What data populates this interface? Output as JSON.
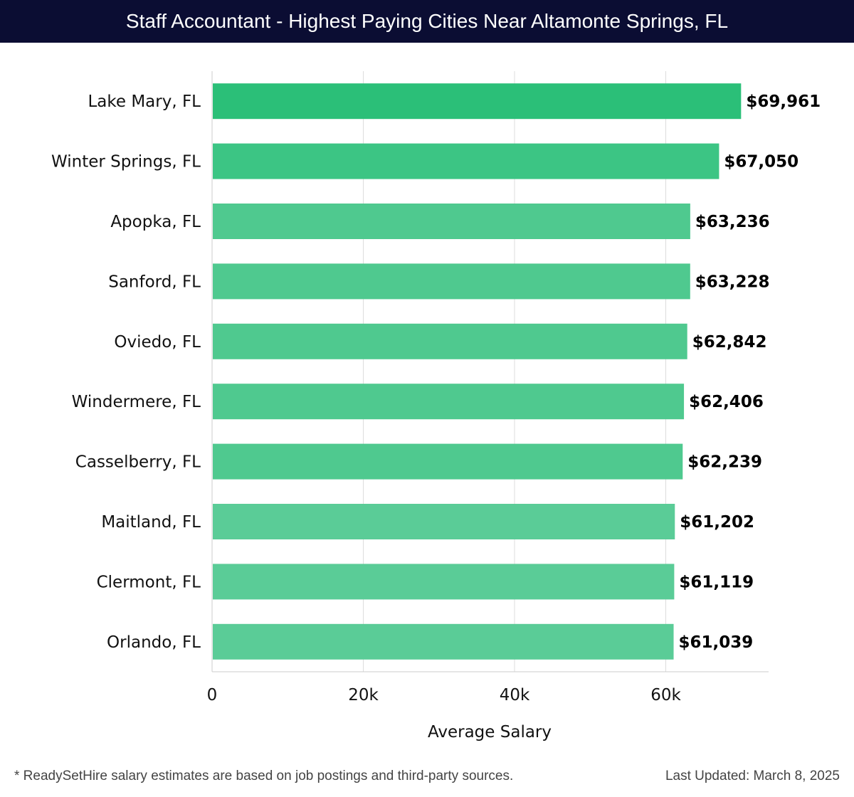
{
  "header": {
    "title": "Staff Accountant - Highest Paying Cities Near Altamonte Springs, FL"
  },
  "footer": {
    "note": "* ReadySetHire salary estimates are based on job postings and third-party sources.",
    "updated": "Last Updated: March 8, 2025"
  },
  "colors": {
    "title_bg": "#0b0d33",
    "bar_top": "#2bbf78",
    "bar_mid": "#4fc98f",
    "bar_low": "#5acc97",
    "grid": "#dddddd"
  },
  "chart_data": {
    "type": "bar",
    "orientation": "horizontal",
    "title": "Staff Accountant - Highest Paying Cities Near Altamonte Springs, FL",
    "xlabel": "Average Salary",
    "ylabel": "",
    "xlim": [
      0,
      73600
    ],
    "grid": true,
    "ticks": [
      {
        "value": 0,
        "label": "0"
      },
      {
        "value": 20000,
        "label": "20k"
      },
      {
        "value": 40000,
        "label": "40k"
      },
      {
        "value": 60000,
        "label": "60k"
      }
    ],
    "categories": [
      "Lake Mary, FL",
      "Winter Springs, FL",
      "Apopka, FL",
      "Sanford, FL",
      "Oviedo, FL",
      "Windermere, FL",
      "Casselberry, FL",
      "Maitland, FL",
      "Clermont, FL",
      "Orlando, FL"
    ],
    "values": [
      69961,
      67050,
      63236,
      63228,
      62842,
      62406,
      62239,
      61202,
      61119,
      61039
    ],
    "value_labels": [
      "$69,961",
      "$67,050",
      "$63,236",
      "$63,228",
      "$62,842",
      "$62,406",
      "$62,239",
      "$61,202",
      "$61,119",
      "$61,039"
    ]
  }
}
